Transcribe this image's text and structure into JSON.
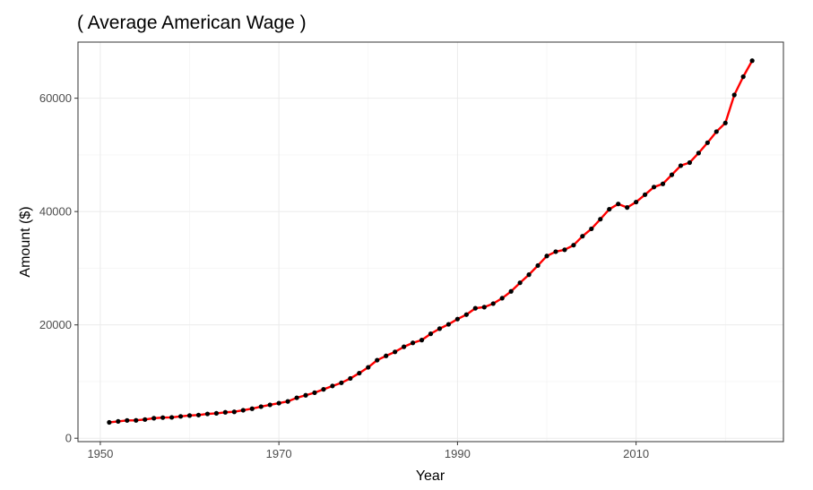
{
  "chart_data": {
    "type": "line",
    "title": "( Average American Wage )",
    "xlabel": "Year",
    "ylabel": "Amount ($)",
    "xlim": [
      1947.5,
      2026.5
    ],
    "ylim": [
      -600,
      69900
    ],
    "x_ticks": [
      1950,
      1970,
      1990,
      2010
    ],
    "y_ticks": [
      0,
      20000,
      40000,
      60000
    ],
    "x_tick_labels": [
      "1950",
      "1970",
      "1990",
      "2010"
    ],
    "y_tick_labels": [
      "0",
      "20000",
      "40000",
      "60000"
    ],
    "grid": true,
    "line_color": "#ff0000",
    "point_color": "#000000",
    "series": [
      {
        "x": [
          1951,
          1952,
          1953,
          1954,
          1955,
          1956,
          1957,
          1958,
          1959,
          1960,
          1961,
          1962,
          1963,
          1964,
          1965,
          1966,
          1967,
          1968,
          1969,
          1970,
          1971,
          1972,
          1973,
          1974,
          1975,
          1976,
          1977,
          1978,
          1979,
          1980,
          1981,
          1982,
          1983,
          1984,
          1985,
          1986,
          1987,
          1988,
          1989,
          1990,
          1991,
          1992,
          1993,
          1994,
          1995,
          1996,
          1997,
          1998,
          1999,
          2000,
          2001,
          2002,
          2003,
          2004,
          2005,
          2006,
          2007,
          2008,
          2009,
          2010,
          2011,
          2012,
          2013,
          2014,
          2015,
          2016,
          2017,
          2018,
          2019,
          2020,
          2021,
          2022,
          2023
        ],
        "values": [
          2799,
          2973,
          3139,
          3156,
          3301,
          3532,
          3642,
          3674,
          3856,
          4007,
          4087,
          4291,
          4397,
          4576,
          4659,
          4938,
          5213,
          5572,
          5894,
          6186,
          6497,
          7134,
          7580,
          8031,
          8631,
          9226,
          9779,
          10556,
          11479,
          12513,
          13773,
          14531,
          15239,
          16135,
          16823,
          17322,
          18427,
          19334,
          20100,
          21028,
          21812,
          22935,
          23133,
          23754,
          24706,
          25914,
          27426,
          28861,
          30470,
          32155,
          32922,
          33252,
          34065,
          35649,
          36953,
          38651,
          40405,
          41335,
          40712,
          41674,
          42980,
          44322,
          44888,
          46482,
          48099,
          48642,
          50322,
          52146,
          54100,
          55629,
          60576,
          63795,
          66622
        ]
      }
    ]
  }
}
